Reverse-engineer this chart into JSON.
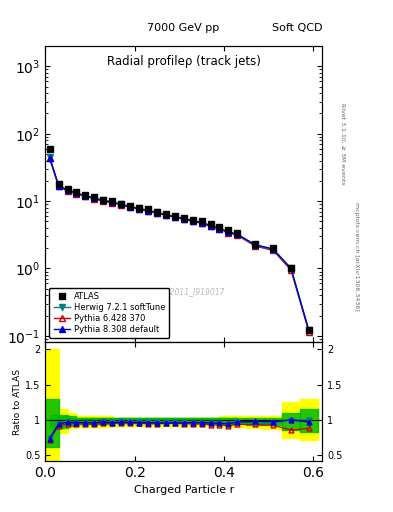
{
  "title_top_left": "7000 GeV pp",
  "title_top_right": "Soft QCD",
  "main_title": "Radial profileρ (track jets)",
  "right_label_top": "Rivet 3.1.10, ≥ 3M events",
  "right_label_bottom": "mcplots.cern.ch [arXiv:1306.3436]",
  "watermark": "ATLAS_2011_I919017",
  "xlabel": "Charged Particle r",
  "ylabel_ratio": "Ratio to ATLAS",
  "xlim": [
    0.0,
    0.62
  ],
  "ylim_main": [
    0.08,
    2000
  ],
  "ylim_ratio": [
    0.42,
    2.1
  ],
  "ratio_yticks": [
    0.5,
    1.0,
    1.5,
    2.0
  ],
  "ratio_yticklabels": [
    "0.5",
    "1",
    "1.5",
    "2"
  ],
  "atlas_x": [
    0.01,
    0.03,
    0.05,
    0.07,
    0.09,
    0.11,
    0.13,
    0.15,
    0.17,
    0.19,
    0.21,
    0.23,
    0.25,
    0.27,
    0.29,
    0.31,
    0.33,
    0.35,
    0.37,
    0.39,
    0.41,
    0.43,
    0.47,
    0.51,
    0.55,
    0.59
  ],
  "atlas_y": [
    60,
    18,
    15,
    13.5,
    12.5,
    11.5,
    10.5,
    10,
    9.2,
    8.5,
    8.0,
    7.5,
    7.0,
    6.5,
    6.1,
    5.7,
    5.3,
    5.0,
    4.5,
    4.1,
    3.7,
    3.3,
    2.3,
    2.0,
    1.0,
    0.12
  ],
  "herwig_x": [
    0.01,
    0.03,
    0.05,
    0.07,
    0.09,
    0.11,
    0.13,
    0.15,
    0.17,
    0.19,
    0.21,
    0.23,
    0.25,
    0.27,
    0.29,
    0.31,
    0.33,
    0.35,
    0.37,
    0.39,
    0.41,
    0.43,
    0.47,
    0.51,
    0.55,
    0.59
  ],
  "herwig_y": [
    45,
    17,
    14.5,
    13,
    12,
    11,
    10.3,
    9.7,
    9.0,
    8.3,
    7.8,
    7.3,
    6.8,
    6.3,
    5.9,
    5.5,
    5.1,
    4.8,
    4.3,
    3.9,
    3.5,
    3.2,
    2.2,
    1.9,
    1.0,
    0.12
  ],
  "pythia6_x": [
    0.01,
    0.03,
    0.05,
    0.07,
    0.09,
    0.11,
    0.13,
    0.15,
    0.17,
    0.19,
    0.21,
    0.23,
    0.25,
    0.27,
    0.29,
    0.31,
    0.33,
    0.35,
    0.37,
    0.39,
    0.41,
    0.43,
    0.47,
    0.51,
    0.55,
    0.59
  ],
  "pythia6_y": [
    43,
    16.5,
    14.2,
    12.8,
    11.8,
    10.8,
    10.0,
    9.5,
    8.8,
    8.1,
    7.6,
    7.1,
    6.6,
    6.2,
    5.8,
    5.4,
    5.0,
    4.7,
    4.2,
    3.8,
    3.4,
    3.1,
    2.15,
    1.85,
    0.95,
    0.115
  ],
  "pythia8_x": [
    0.01,
    0.03,
    0.05,
    0.07,
    0.09,
    0.11,
    0.13,
    0.15,
    0.17,
    0.19,
    0.21,
    0.23,
    0.25,
    0.27,
    0.29,
    0.31,
    0.33,
    0.35,
    0.37,
    0.39,
    0.41,
    0.43,
    0.47,
    0.51,
    0.55,
    0.59
  ],
  "pythia8_y": [
    44,
    17,
    14.5,
    13,
    12,
    11,
    10.2,
    9.6,
    8.9,
    8.2,
    7.7,
    7.2,
    6.7,
    6.2,
    5.85,
    5.45,
    5.1,
    4.8,
    4.3,
    3.9,
    3.5,
    3.2,
    2.25,
    1.95,
    1.0,
    0.12
  ],
  "herwig_ratio": [
    0.75,
    0.94,
    0.97,
    0.963,
    0.96,
    0.957,
    0.981,
    0.97,
    0.978,
    0.976,
    0.975,
    0.973,
    0.971,
    0.969,
    0.967,
    0.965,
    0.962,
    0.96,
    0.956,
    0.951,
    0.946,
    0.97,
    0.957,
    0.95,
    1.0,
    1.0
  ],
  "pythia6_ratio": [
    0.72,
    0.917,
    0.947,
    0.948,
    0.944,
    0.939,
    0.952,
    0.95,
    0.957,
    0.953,
    0.95,
    0.947,
    0.943,
    0.954,
    0.951,
    0.947,
    0.943,
    0.94,
    0.933,
    0.927,
    0.919,
    0.939,
    0.935,
    0.925,
    0.855,
    0.88
  ],
  "pythia8_ratio": [
    0.73,
    0.944,
    0.967,
    0.963,
    0.96,
    0.957,
    0.971,
    0.96,
    0.967,
    0.965,
    0.963,
    0.96,
    0.957,
    0.954,
    0.959,
    0.956,
    0.962,
    0.96,
    0.956,
    0.951,
    0.946,
    0.97,
    0.978,
    0.975,
    1.0,
    0.97
  ],
  "yellow_up": [
    2.0,
    1.15,
    1.1,
    1.05,
    1.05,
    1.05,
    1.05,
    1.03,
    1.03,
    1.03,
    1.03,
    1.03,
    1.03,
    1.03,
    1.03,
    1.03,
    1.03,
    1.03,
    1.03,
    1.03,
    1.05,
    1.05,
    1.05,
    1.05,
    1.25,
    1.3
  ],
  "yellow_dn": [
    0.42,
    0.82,
    0.88,
    0.9,
    0.9,
    0.9,
    0.9,
    0.92,
    0.92,
    0.92,
    0.92,
    0.92,
    0.92,
    0.92,
    0.92,
    0.92,
    0.92,
    0.92,
    0.92,
    0.92,
    0.9,
    0.9,
    0.88,
    0.87,
    0.75,
    0.72
  ],
  "green_up": [
    1.3,
    1.07,
    1.05,
    1.03,
    1.03,
    1.03,
    1.03,
    1.02,
    1.02,
    1.02,
    1.02,
    1.02,
    1.02,
    1.02,
    1.02,
    1.02,
    1.02,
    1.02,
    1.02,
    1.02,
    1.02,
    1.02,
    1.02,
    1.02,
    1.1,
    1.15
  ],
  "green_dn": [
    0.62,
    0.88,
    0.92,
    0.94,
    0.94,
    0.94,
    0.94,
    0.95,
    0.95,
    0.95,
    0.95,
    0.95,
    0.95,
    0.95,
    0.95,
    0.95,
    0.95,
    0.95,
    0.95,
    0.95,
    0.94,
    0.94,
    0.93,
    0.93,
    0.85,
    0.83
  ],
  "atlas_color": "#000000",
  "herwig_color": "#008080",
  "pythia6_color": "#cc0000",
  "pythia8_color": "#0000cc",
  "band_yellow": "#ffff00",
  "band_green": "#00bb00",
  "legend_entries": [
    "ATLAS",
    "Herwig 7.2.1 softTune",
    "Pythia 6.428 370",
    "Pythia 8.308 default"
  ]
}
